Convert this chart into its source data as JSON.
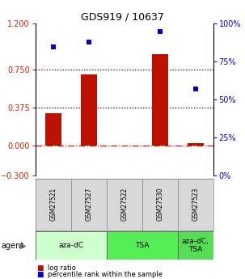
{
  "title": "GDS919 / 10637",
  "samples": [
    "GSM27521",
    "GSM27527",
    "GSM27522",
    "GSM27530",
    "GSM27523"
  ],
  "log_ratio": [
    0.32,
    0.7,
    0.0,
    0.9,
    0.02
  ],
  "percentile_rank": [
    85,
    88,
    null,
    95,
    57
  ],
  "agent_groups": [
    {
      "label": "aza-dC",
      "span": [
        0,
        2
      ],
      "color": "#ccffcc"
    },
    {
      "label": "TSA",
      "span": [
        2,
        4
      ],
      "color": "#66ee66"
    },
    {
      "label": "aza-dC,\nTSA",
      "span": [
        4,
        5
      ],
      "color": "#55dd55"
    }
  ],
  "ylim_left": [
    -0.3,
    1.2
  ],
  "ylim_right": [
    0,
    100
  ],
  "yticks_left": [
    -0.3,
    0,
    0.375,
    0.75,
    1.2
  ],
  "yticks_right": [
    0,
    25,
    50,
    75,
    100
  ],
  "hlines": [
    0.375,
    0.75
  ],
  "bar_color": "#bb1100",
  "dot_color": "#0000cc",
  "zero_line_color": "#bb2200",
  "legend_items": [
    {
      "color": "#bb1100",
      "label": "log ratio"
    },
    {
      "color": "#0000cc",
      "label": "percentile rank within the sample"
    }
  ]
}
